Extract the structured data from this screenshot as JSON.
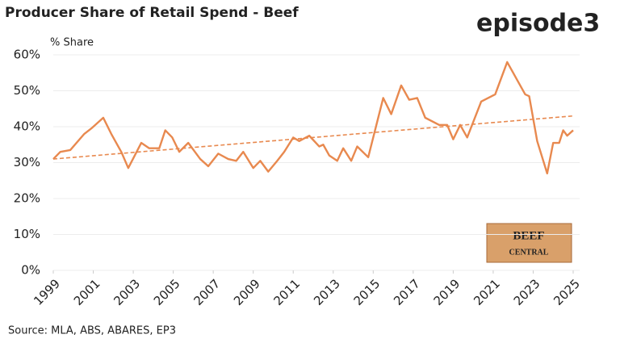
{
  "chart_data": {
    "type": "line",
    "title": "Producer Share of Retail Spend - Beef",
    "y_axis_label": "% Share",
    "source": "Source: MLA, ABS, ABARES, EP3",
    "brand": "episode3",
    "badge": [
      "BEEF",
      "CENTRAL"
    ],
    "xlim": [
      1999,
      2025
    ],
    "xticks": [
      1999,
      2001,
      2003,
      2005,
      2007,
      2009,
      2011,
      2013,
      2015,
      2017,
      2019,
      2021,
      2023,
      2025
    ],
    "ylim": [
      0,
      60
    ],
    "yticks": [
      {
        "value": 0,
        "label": "0%"
      },
      {
        "value": 10,
        "label": "10%"
      },
      {
        "value": 20,
        "label": "20%"
      },
      {
        "value": 30,
        "label": "30%"
      },
      {
        "value": 40,
        "label": "40%"
      },
      {
        "value": 50,
        "label": "50%"
      },
      {
        "value": 60,
        "label": "60%"
      }
    ],
    "grid": true,
    "series": [
      {
        "color": "#e8894f",
        "x": [
          1999,
          1999.35,
          1999.85,
          2000.55,
          2000.9,
          2001.5,
          2001.9,
          2002.4,
          2002.75,
          2003.4,
          2003.8,
          2004.3,
          2004.6,
          2004.95,
          2005.3,
          2005.75,
          2006.35,
          2006.75,
          2007.25,
          2007.75,
          2008.15,
          2008.5,
          2009.0,
          2009.35,
          2009.75,
          2010.2,
          2010.55,
          2011.0,
          2011.3,
          2011.8,
          2012.3,
          2012.5,
          2012.8,
          2013.2,
          2013.5,
          2013.9,
          2014.2,
          2014.75,
          2015.5,
          2015.9,
          2016.4,
          2016.8,
          2017.2,
          2017.6,
          2018.3,
          2018.7,
          2019.0,
          2019.35,
          2019.7,
          2020.4,
          2021.1,
          2021.7,
          2022.2,
          2022.6,
          2022.8,
          2023.2,
          2023.7,
          2024.0,
          2024.3,
          2024.5,
          2024.7,
          2025.0
        ],
        "values": [
          31,
          33,
          33.5,
          38,
          39.5,
          42.5,
          38,
          33,
          28.5,
          35.5,
          34,
          34,
          39,
          37,
          33,
          35.5,
          31,
          29,
          32.5,
          31,
          30.5,
          33,
          28.5,
          30.5,
          27.5,
          30.5,
          33,
          37,
          36,
          37.5,
          34.5,
          35,
          32,
          30.5,
          34,
          30.5,
          34.5,
          31.5,
          48,
          43.5,
          51.5,
          47.5,
          48,
          42.5,
          40.5,
          40.5,
          36.5,
          40.5,
          37,
          47,
          49,
          58,
          53,
          49,
          48.5,
          36,
          27,
          35.5,
          35.5,
          39,
          37.5,
          39
        ]
      },
      {
        "color": "#e8894f",
        "style": "dashed",
        "x": [
          1999,
          2025
        ],
        "values": [
          31,
          43
        ]
      }
    ]
  }
}
